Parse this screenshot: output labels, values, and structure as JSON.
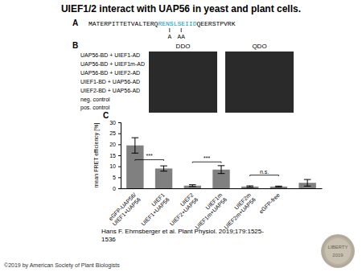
{
  "chart_data": {
    "type": "bar",
    "title": "UIEF1/2 interact with UAP56 in yeast and plant cells.",
    "categories": [
      "eGFP-UAP56/\nUIEF1+UAP56",
      "UIEF1\nUIEF1+UAP56",
      "UIEF2\nUIEF2+UAP56",
      "UIEF1m\nUIEF1m+UAP56",
      "UIEF2m\nUIEF2m+UAP56",
      "eGFP-free",
      null
    ],
    "values": [
      19.5,
      9.0,
      1.2,
      8.5,
      0.8,
      0.8,
      2.5
    ],
    "errors": [
      3.5,
      1.2,
      0.4,
      1.8,
      0.3,
      0.2,
      1.5
    ],
    "color": "#808080",
    "ylim": [
      0,
      30
    ],
    "yticks": [
      0,
      5,
      10,
      15,
      20,
      25,
      30
    ],
    "ylabel": "mean FRET efficiency [%]",
    "grid": false,
    "annotations": [
      {
        "x1": 0,
        "x2": 1,
        "y": 13,
        "label": "***"
      },
      {
        "x1": 2,
        "x2": 3,
        "y": 12,
        "label": "***"
      },
      {
        "x1": 4,
        "x2": 5,
        "y": 6,
        "label": "n.s."
      }
    ],
    "panel_labels": [
      "A",
      "B",
      "C"
    ],
    "sequence": {
      "text": "MATERPITTETVALTERQRENSLSEIIDQEERSTPVRK",
      "highlight": "RENSLSEIID",
      "highlight_color": "#0099cc",
      "marks": [
        "A",
        "AA"
      ]
    },
    "yeast": {
      "columns": [
        "DDO",
        "QDO"
      ],
      "rows": [
        "UAP56-BD + UIEF1-AD",
        "UAP56-BD + UIEF1m-AD",
        "UAP56-BD + UIEF2-AD",
        "UIEF1-BD + UAP56-AD",
        "UIEF2-BD + UAP56-AD",
        "neg. control",
        "pos. control"
      ]
    },
    "citation": "Hans F. Ehrnsberger et al. Plant Physiol. 2019;179:1525-\n1536",
    "copyright": "©2019 by American Society of Plant Biologists",
    "seal": [
      "LIBERTY",
      "2019"
    ]
  }
}
